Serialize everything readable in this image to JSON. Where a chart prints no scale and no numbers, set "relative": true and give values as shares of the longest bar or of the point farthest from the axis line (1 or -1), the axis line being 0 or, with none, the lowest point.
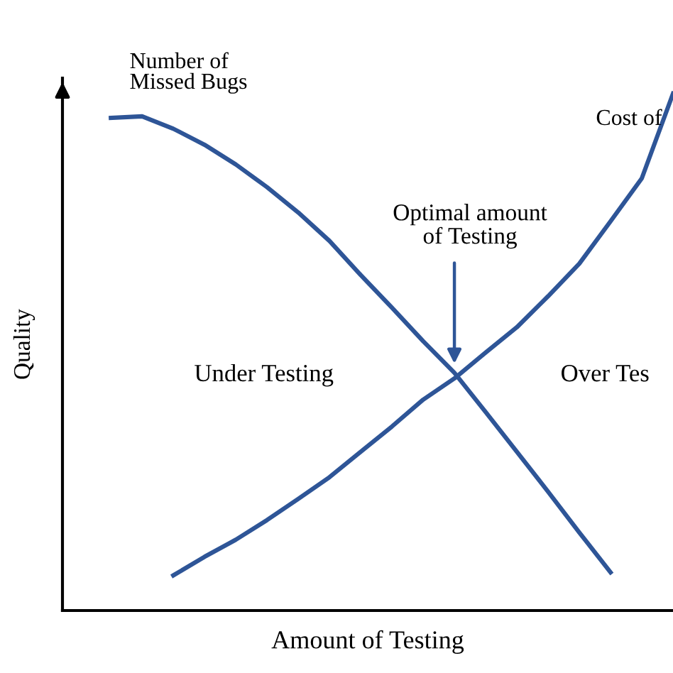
{
  "chart_data": {
    "type": "line",
    "relative": true,
    "xlabel": "Amount of Testing",
    "ylabel": "Quality",
    "categories": [
      null,
      null,
      null,
      null,
      null,
      null,
      null,
      null,
      null,
      null,
      null,
      null,
      null,
      null,
      null,
      null,
      null,
      null,
      null
    ],
    "series": [
      {
        "name": "Number of\nMissed Bugs",
        "color": "#2e5597",
        "values": [
          0.953,
          0.956,
          0.932,
          0.901,
          0.863,
          0.819,
          0.77,
          0.715,
          0.649,
          0.586,
          0.521,
          0.46,
          0.384,
          0.307,
          0.23,
          0.151,
          0.074,
          null,
          null
        ]
      },
      {
        "name": "Cost of",
        "color": "#2e5597",
        "values": [
          null,
          null,
          0.068,
          0.104,
          0.137,
          0.175,
          0.216,
          0.258,
          0.307,
          0.356,
          0.408,
          0.449,
          0.499,
          0.548,
          0.608,
          0.671,
          0.753,
          0.836,
          1.0
        ]
      }
    ],
    "annotations": [
      "Optimal amount\nof Testing",
      "Under Testing",
      "Over Tes"
    ],
    "marker": "none",
    "line_style": "solid"
  }
}
